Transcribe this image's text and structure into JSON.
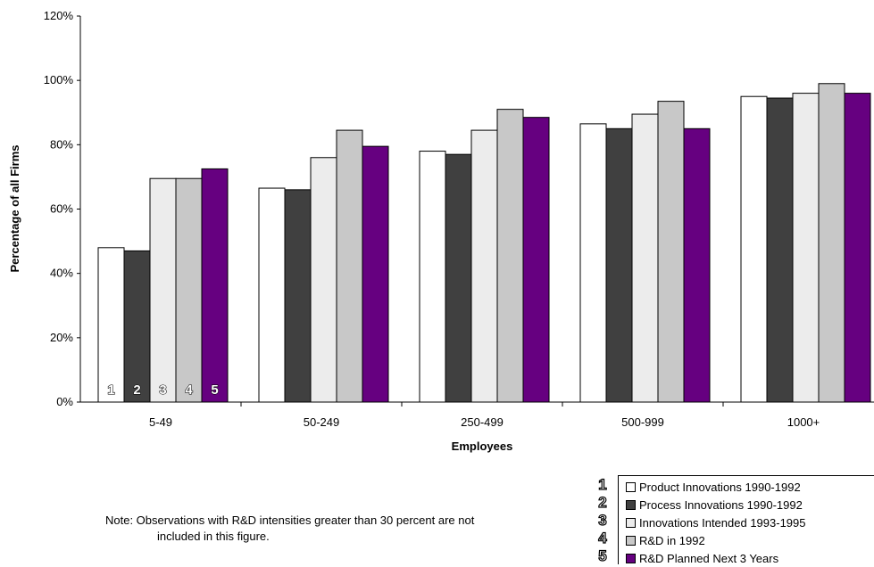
{
  "chart_data": {
    "type": "bar",
    "categories": [
      "5-49",
      "50-249",
      "250-499",
      "500-999",
      "1000+"
    ],
    "series": [
      {
        "name": "Product Innovations 1990-1992",
        "values": [
          48,
          66.5,
          78,
          86.5,
          95
        ],
        "color": "#ffffff"
      },
      {
        "name": "Process Innovations 1990-1992",
        "values": [
          47,
          66,
          77,
          85,
          94.5
        ],
        "color": "#404040"
      },
      {
        "name": "Innovations Intended 1993-1995",
        "values": [
          69.5,
          76,
          84.5,
          89.5,
          96
        ],
        "color": "#ececec"
      },
      {
        "name": "R&D in 1992",
        "values": [
          69.5,
          84.5,
          91,
          93.5,
          99
        ],
        "color": "#c8c8c8"
      },
      {
        "name": "R&D Planned Next 3 Years",
        "values": [
          72.5,
          79.5,
          88.5,
          85,
          96
        ],
        "color": "#660080"
      }
    ],
    "xlabel": "Employees",
    "ylabel": "Percentage of all Firms",
    "ylim": [
      0,
      120
    ],
    "yticks": [
      "0%",
      "20%",
      "40%",
      "60%",
      "80%",
      "100%",
      "120%"
    ],
    "bar_numbers": [
      "1",
      "2",
      "3",
      "4",
      "5"
    ],
    "legend_position": "bottom-right",
    "grid": false
  },
  "note": {
    "line1": "Note:  Observations with R&D intensities greater than 30 percent are not",
    "line2": "included in this figure."
  },
  "legend": {
    "numbers": [
      "1",
      "2",
      "3",
      "4",
      "5"
    ]
  }
}
